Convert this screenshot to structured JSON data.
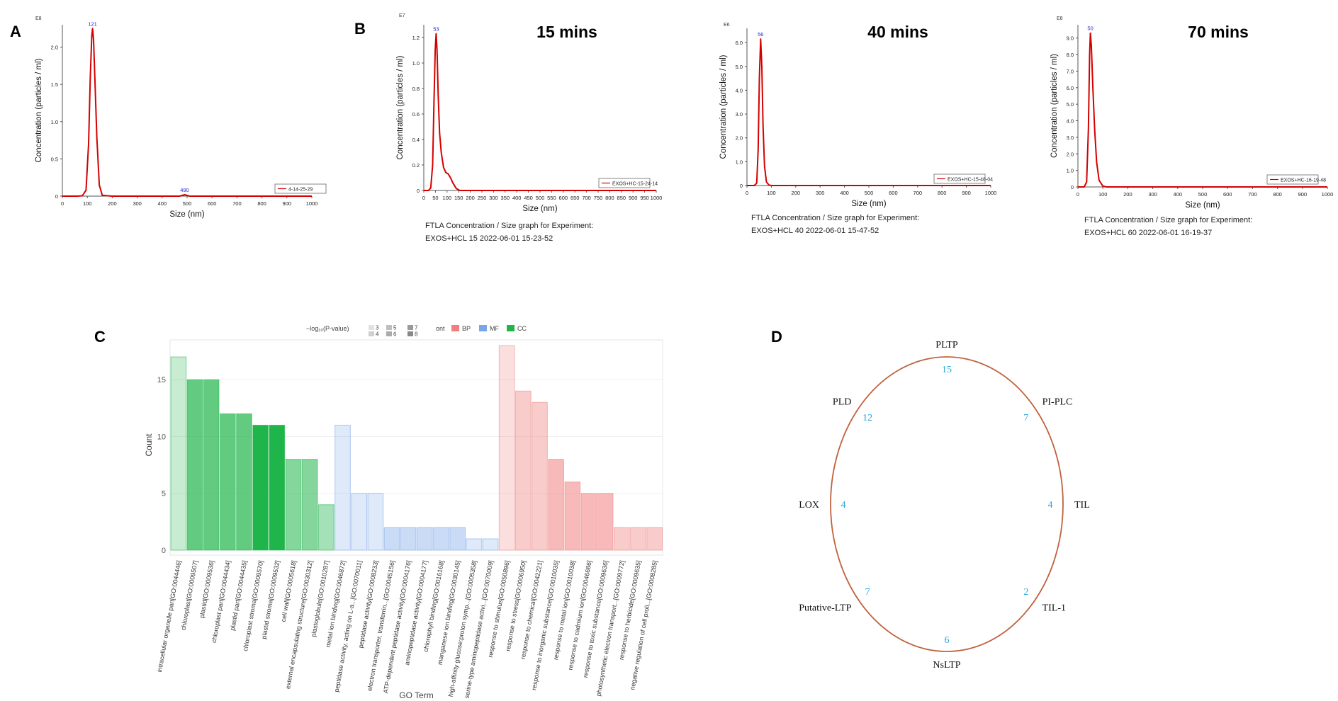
{
  "panel_labels": {
    "a": "A",
    "b": "B",
    "c": "C",
    "d": "D"
  },
  "colors": {
    "curve": "#d40000",
    "peak_label": "#1f1fd0",
    "ellipse": "#c0623e",
    "circle_numbers": "#2aa7d6",
    "bp": "#f08080",
    "mf": "#7aa6e8",
    "cc": "#1fb54a"
  },
  "chart_data": [
    {
      "type": "line",
      "panel": "A",
      "title": "",
      "xlabel": "Size (nm)",
      "ylabel": "Concentration (particles / ml)",
      "y_exponent": "E8",
      "xlim": [
        0,
        1000
      ],
      "ylim": [
        0,
        2.3
      ],
      "xticks": [
        "0",
        "100",
        "200",
        "300",
        "400",
        "500",
        "600",
        "700",
        "800",
        "900",
        "1000"
      ],
      "yticks": [
        "0",
        "0.5",
        "1.0",
        "1.5",
        "2.0"
      ],
      "legend": "4-14-25-29",
      "peak_labels": [
        {
          "x": 121,
          "y": 2.25,
          "text": "121"
        },
        {
          "x": 490,
          "y": 0.02,
          "text": "490"
        }
      ],
      "series": [
        {
          "x": [
            0,
            60,
            80,
            95,
            105,
            112,
            118,
            121,
            125,
            130,
            138,
            148,
            160,
            200,
            400,
            470,
            490,
            510,
            560,
            1000
          ],
          "y": [
            0,
            0,
            0.005,
            0.08,
            0.7,
            1.6,
            2.15,
            2.25,
            2.1,
            1.6,
            0.8,
            0.15,
            0.01,
            0,
            0,
            0,
            0.02,
            0,
            0,
            0
          ]
        }
      ],
      "caption_lines": []
    },
    {
      "type": "line",
      "panel": "B",
      "title": "15 mins",
      "xlabel": "Size (nm)",
      "ylabel": "Concentration (particles / ml)",
      "y_exponent": "E7",
      "xlim": [
        0,
        1000
      ],
      "ylim": [
        0,
        1.3
      ],
      "xticks": [
        "0",
        "50",
        "100",
        "150",
        "200",
        "250",
        "300",
        "350",
        "400",
        "450",
        "500",
        "550",
        "600",
        "650",
        "700",
        "750",
        "800",
        "850",
        "900",
        "950",
        "1000"
      ],
      "yticks": [
        "0",
        "0.2",
        "0.4",
        "0.6",
        "0.8",
        "1.0",
        "1.2"
      ],
      "legend": "EXOS+HC-15-24-14",
      "peak_labels": [
        {
          "x": 53,
          "y": 1.23,
          "text": "53"
        }
      ],
      "series": [
        {
          "x": [
            0,
            20,
            30,
            38,
            44,
            49,
            53,
            57,
            62,
            68,
            75,
            85,
            95,
            105,
            115,
            125,
            140,
            155,
            170,
            1000
          ],
          "y": [
            0,
            0,
            0.02,
            0.2,
            0.7,
            1.1,
            1.23,
            1.1,
            0.75,
            0.45,
            0.3,
            0.18,
            0.14,
            0.13,
            0.1,
            0.06,
            0.015,
            0,
            0,
            0
          ]
        }
      ],
      "caption_lines": [
        "FTLA Concentration / Size graph for Experiment:",
        "EXOS+HCL 15 2022-06-01 15-23-52"
      ]
    },
    {
      "type": "line",
      "panel": "B",
      "title": "40 mins",
      "xlabel": "Size (nm)",
      "ylabel": "Concentration (particles / ml)",
      "y_exponent": "E6",
      "xlim": [
        0,
        1000
      ],
      "ylim": [
        0,
        6.6
      ],
      "xticks": [
        "0",
        "100",
        "200",
        "300",
        "400",
        "500",
        "600",
        "700",
        "800",
        "900",
        "1000"
      ],
      "yticks": [
        "0",
        "1.0",
        "2.0",
        "3.0",
        "4.0",
        "5.0",
        "6.0"
      ],
      "legend": "EXOS+HC-15-48-04",
      "peak_labels": [
        {
          "x": 56,
          "y": 6.15,
          "text": "56"
        }
      ],
      "series": [
        {
          "x": [
            0,
            30,
            40,
            46,
            51,
            56,
            61,
            66,
            72,
            80,
            90,
            100,
            1000
          ],
          "y": [
            0,
            0,
            0.1,
            1.5,
            4.5,
            6.15,
            5.0,
            2.5,
            0.8,
            0.15,
            0.02,
            0,
            0
          ]
        }
      ],
      "caption_lines": [
        "FTLA Concentration / Size graph for Experiment:",
        "EXOS+HCL 40 2022-06-01 15-47-52"
      ]
    },
    {
      "type": "line",
      "panel": "B",
      "title": "70 mins",
      "xlabel": "Size (nm)",
      "ylabel": "Concentration (particles / ml)",
      "y_exponent": "E6",
      "xlim": [
        0,
        1000
      ],
      "ylim": [
        0,
        9.8
      ],
      "xticks": [
        "0",
        "100",
        "200",
        "300",
        "400",
        "500",
        "600",
        "700",
        "800",
        "900",
        "1000"
      ],
      "yticks": [
        "0",
        "1.0",
        "2.0",
        "3.0",
        "4.0",
        "5.0",
        "6.0",
        "7.0",
        "8.0",
        "9.0"
      ],
      "legend": "EXOS+HC-16-19-48",
      "peak_labels": [
        {
          "x": 50,
          "y": 9.3,
          "text": "50"
        }
      ],
      "series": [
        {
          "x": [
            0,
            25,
            35,
            42,
            47,
            50,
            54,
            60,
            67,
            75,
            85,
            100,
            115,
            1000
          ],
          "y": [
            0,
            0,
            0.3,
            3.5,
            8.0,
            9.3,
            8.5,
            6.0,
            3.5,
            1.5,
            0.4,
            0.05,
            0,
            0
          ]
        }
      ],
      "caption_lines": [
        "FTLA Concentration / Size graph for Experiment:",
        "EXOS+HCL 60 2022-06-01 16-19-37"
      ]
    },
    {
      "type": "bar",
      "panel": "C",
      "xlabel": "GO Term",
      "ylabel": "Count",
      "ylim": [
        0,
        18.5
      ],
      "yticks": [
        "0",
        "5",
        "10",
        "15"
      ],
      "legend": {
        "pvalue_title": "−log₁₀(P-value)",
        "pvalue_levels": [
          "3",
          "4",
          "5",
          "6",
          "7",
          "8"
        ],
        "ont_title": "ont",
        "ont_items": [
          "BP",
          "MF",
          "CC"
        ]
      },
      "categories": [
        "intracellular organelle part[GO:0044446]",
        "chloroplast[GO:0009507]",
        "plastid[GO:0009536]",
        "chloroplast part[GO:0044434]",
        "plastid part[GO:0044435]",
        "chloroplast stroma[GO:0009570]",
        "plastid stroma[GO:0009532]",
        "cell wall[GO:0005618]",
        "external encapsulating structure[GO:0030312]",
        "plastoglobule[GO:0010287]",
        "metal ion binding[GO:0046872]",
        "peptidase activity, acting on L-a...[GO:0070011]",
        "peptidase activity[GO:0008233]",
        "electron transporter, transferrin...[GO:0045156]",
        "ATP-dependent peptidase activity[GO:0004176]",
        "aminopeptidase activity[GO:0004177]",
        "chlorophyll binding[GO:0016168]",
        "manganese ion binding[GO:0030145]",
        "high-affinity glucose:proton symp...[GO:0005358]",
        "serine-type aminopeptidase activi...[GO:0070009]",
        "response to stimulus[GO:0050896]",
        "response to stress[GO:0006950]",
        "response to chemical[GO:0042221]",
        "response to inorganic substance[GO:0010035]",
        "response to metal ion[GO:0010038]",
        "response to cadmium ion[GO:0046686]",
        "response to toxic substance[GO:0009636]",
        "photosynthetic electron transport...[GO:0009772]",
        "response to herbicide[GO:0009635]",
        "negative regulation of cell proli...[GO:0008285]"
      ],
      "ont": [
        "CC",
        "CC",
        "CC",
        "CC",
        "CC",
        "CC",
        "CC",
        "CC",
        "CC",
        "CC",
        "MF",
        "MF",
        "MF",
        "MF",
        "MF",
        "MF",
        "MF",
        "MF",
        "MF",
        "MF",
        "BP",
        "BP",
        "BP",
        "BP",
        "BP",
        "BP",
        "BP",
        "BP",
        "BP",
        "BP"
      ],
      "values": [
        17,
        15,
        15,
        12,
        12,
        11,
        11,
        8,
        8,
        4,
        11,
        5,
        5,
        2,
        2,
        2,
        2,
        2,
        1,
        1,
        18,
        14,
        13,
        8,
        6,
        5,
        5,
        2,
        2,
        2
      ],
      "neg_log10_p": [
        3,
        6,
        6,
        6,
        6,
        8,
        8,
        5,
        5,
        4,
        3,
        3,
        3,
        4,
        4,
        4,
        4,
        4,
        3,
        3,
        3,
        4,
        4,
        5,
        5,
        5,
        5,
        4,
        4,
        4
      ]
    },
    {
      "type": "radial",
      "panel": "D",
      "categories": [
        "PLTP",
        "PI-PLC",
        "TIL",
        "TIL-1",
        "NsLTP",
        "Putative-LTP",
        "LOX",
        "PLD"
      ],
      "values": [
        15,
        7,
        4,
        2,
        6,
        7,
        4,
        12
      ]
    }
  ]
}
